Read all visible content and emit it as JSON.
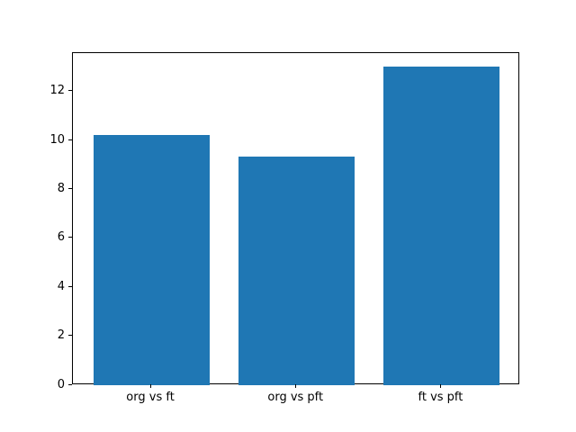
{
  "chart_data": {
    "type": "bar",
    "title": "",
    "xlabel": "",
    "ylabel": "",
    "categories": [
      "org vs ft",
      "org vs pft",
      "ft vs pft"
    ],
    "values": [
      10.22,
      9.35,
      13.03
    ],
    "yticks": [
      0,
      2,
      4,
      6,
      8,
      10,
      12
    ],
    "ylim": [
      0,
      13.6
    ],
    "xlim": [
      -0.54,
      2.54
    ],
    "bar_width": 0.8,
    "bar_color": "#1f77b4",
    "spine_color": "#000000",
    "background_color": "#ffffff",
    "grid": false,
    "legend": null
  }
}
